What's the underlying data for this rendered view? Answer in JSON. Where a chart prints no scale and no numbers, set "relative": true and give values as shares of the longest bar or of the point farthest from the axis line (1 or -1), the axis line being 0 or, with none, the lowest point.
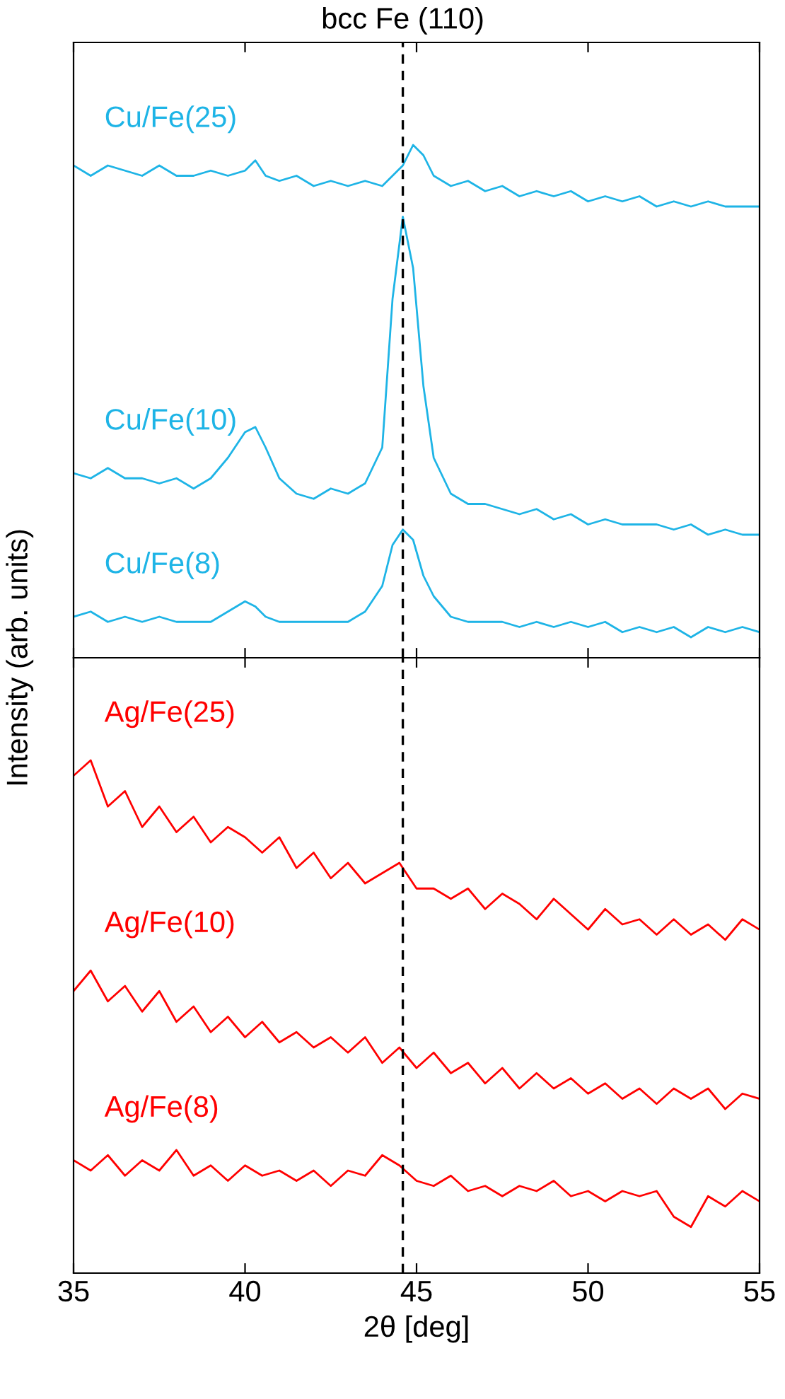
{
  "chart_data": [
    {
      "type": "line",
      "relative": true,
      "ylabel": "Intensity (arb. units)",
      "xlim": [
        35,
        55
      ],
      "xticks": [
        35,
        40,
        45,
        50,
        55
      ],
      "tick_labels": false,
      "grid": false,
      "legend": false,
      "ref_lines": [
        {
          "axis": "x",
          "value": 44.6,
          "label": "bcc Fe (110)",
          "line_style": "dashed",
          "color": "#000000"
        }
      ],
      "x": [
        35,
        35.5,
        36,
        36.5,
        37,
        37.5,
        38,
        38.5,
        39,
        39.5,
        40,
        40.3,
        40.6,
        41,
        41.5,
        42,
        42.5,
        43,
        43.5,
        44,
        44.3,
        44.6,
        44.9,
        45.2,
        45.5,
        46,
        46.5,
        47,
        47.5,
        48,
        48.5,
        49,
        49.5,
        50,
        50.5,
        51,
        51.5,
        52,
        52.5,
        53,
        53.5,
        54,
        54.5,
        55
      ],
      "series": [
        {
          "name": "Cu/Fe(25)",
          "color": "#1eb4e6",
          "values": [
            0.96,
            0.94,
            0.96,
            0.95,
            0.94,
            0.96,
            0.94,
            0.94,
            0.95,
            0.94,
            0.95,
            0.97,
            0.94,
            0.93,
            0.94,
            0.92,
            0.93,
            0.92,
            0.93,
            0.92,
            0.94,
            0.96,
            1.0,
            0.98,
            0.94,
            0.92,
            0.93,
            0.91,
            0.92,
            0.9,
            0.91,
            0.9,
            0.91,
            0.89,
            0.9,
            0.89,
            0.9,
            0.88,
            0.89,
            0.88,
            0.89,
            0.88,
            0.88,
            0.88
          ]
        },
        {
          "name": "Cu/Fe(10)",
          "color": "#1eb4e6",
          "values": [
            0.36,
            0.35,
            0.37,
            0.35,
            0.35,
            0.34,
            0.35,
            0.33,
            0.35,
            0.39,
            0.44,
            0.45,
            0.41,
            0.35,
            0.32,
            0.31,
            0.33,
            0.32,
            0.34,
            0.41,
            0.7,
            0.86,
            0.76,
            0.53,
            0.39,
            0.32,
            0.3,
            0.3,
            0.29,
            0.28,
            0.29,
            0.27,
            0.28,
            0.26,
            0.27,
            0.26,
            0.26,
            0.26,
            0.25,
            0.26,
            0.24,
            0.25,
            0.24,
            0.24
          ]
        },
        {
          "name": "Cu/Fe(8)",
          "color": "#1eb4e6",
          "values": [
            0.08,
            0.09,
            0.07,
            0.08,
            0.07,
            0.08,
            0.07,
            0.07,
            0.07,
            0.09,
            0.11,
            0.1,
            0.08,
            0.07,
            0.07,
            0.07,
            0.07,
            0.07,
            0.09,
            0.14,
            0.22,
            0.25,
            0.23,
            0.16,
            0.12,
            0.08,
            0.07,
            0.07,
            0.07,
            0.06,
            0.07,
            0.06,
            0.07,
            0.06,
            0.07,
            0.05,
            0.06,
            0.05,
            0.06,
            0.04,
            0.06,
            0.05,
            0.06,
            0.05
          ]
        }
      ]
    },
    {
      "type": "line",
      "relative": true,
      "xlabel": "2θ [deg]",
      "xlim": [
        35,
        55
      ],
      "xticks": [
        35,
        40,
        45,
        50,
        55
      ],
      "tick_labels": "x",
      "grid": false,
      "legend": false,
      "ref_lines": [
        {
          "axis": "x",
          "value": 44.6,
          "line_style": "dashed",
          "color": "#000000"
        }
      ],
      "x": [
        35,
        35.5,
        36,
        36.5,
        37,
        37.5,
        38,
        38.5,
        39,
        39.5,
        40,
        40.5,
        41,
        41.5,
        42,
        42.5,
        43,
        43.5,
        44,
        44.5,
        45,
        45.5,
        46,
        46.5,
        47,
        47.5,
        48,
        48.5,
        49,
        49.5,
        50,
        50.5,
        51,
        51.5,
        52,
        52.5,
        53,
        53.5,
        54,
        54.5,
        55
      ],
      "series": [
        {
          "name": "Ag/Fe(25)",
          "color": "#ff0000",
          "values": [
            0.97,
            1.0,
            0.91,
            0.94,
            0.87,
            0.91,
            0.86,
            0.89,
            0.84,
            0.87,
            0.85,
            0.82,
            0.85,
            0.79,
            0.82,
            0.77,
            0.8,
            0.76,
            0.78,
            0.8,
            0.75,
            0.75,
            0.73,
            0.75,
            0.71,
            0.74,
            0.72,
            0.69,
            0.73,
            0.7,
            0.67,
            0.71,
            0.68,
            0.69,
            0.66,
            0.69,
            0.66,
            0.68,
            0.65,
            0.69,
            0.67
          ]
        },
        {
          "name": "Ag/Fe(10)",
          "color": "#ff0000",
          "values": [
            0.55,
            0.59,
            0.53,
            0.56,
            0.51,
            0.55,
            0.49,
            0.52,
            0.47,
            0.5,
            0.46,
            0.49,
            0.45,
            0.47,
            0.44,
            0.46,
            0.43,
            0.46,
            0.41,
            0.44,
            0.4,
            0.43,
            0.39,
            0.41,
            0.37,
            0.4,
            0.36,
            0.39,
            0.36,
            0.38,
            0.35,
            0.37,
            0.34,
            0.36,
            0.33,
            0.36,
            0.34,
            0.36,
            0.32,
            0.35,
            0.34
          ]
        },
        {
          "name": "Ag/Fe(8)",
          "color": "#ff0000",
          "values": [
            0.22,
            0.2,
            0.23,
            0.19,
            0.22,
            0.2,
            0.24,
            0.19,
            0.21,
            0.18,
            0.21,
            0.19,
            0.2,
            0.18,
            0.2,
            0.17,
            0.2,
            0.19,
            0.23,
            0.21,
            0.18,
            0.17,
            0.19,
            0.16,
            0.17,
            0.15,
            0.17,
            0.16,
            0.18,
            0.15,
            0.16,
            0.14,
            0.16,
            0.15,
            0.16,
            0.11,
            0.09,
            0.15,
            0.13,
            0.16,
            0.14
          ]
        }
      ]
    }
  ]
}
